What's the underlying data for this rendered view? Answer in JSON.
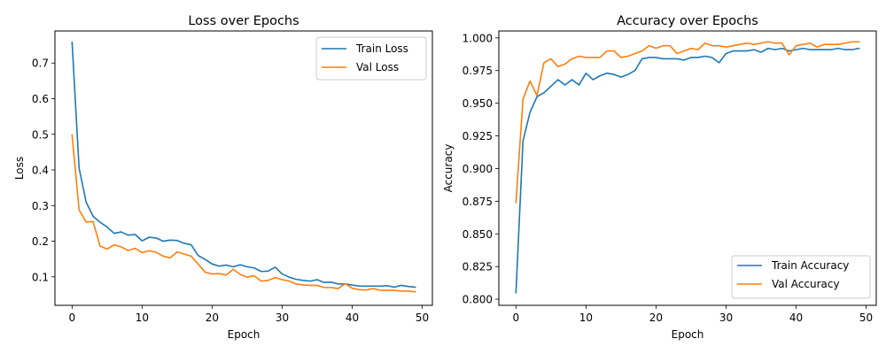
{
  "chart_data": [
    {
      "type": "line",
      "title": "Loss over Epochs",
      "xlabel": "Epoch",
      "ylabel": "Loss",
      "xlim": [
        -2.45,
        51.45
      ],
      "ylim": [
        0.02,
        0.79
      ],
      "xticks": [
        0,
        10,
        20,
        30,
        40,
        50
      ],
      "yticks": [
        0.1,
        0.2,
        0.3,
        0.4,
        0.5,
        0.6,
        0.7
      ],
      "ytick_decimals": 1,
      "grid": false,
      "legend_position": "upper right",
      "x": [
        0,
        1,
        2,
        3,
        4,
        5,
        6,
        7,
        8,
        9,
        10,
        11,
        12,
        13,
        14,
        15,
        16,
        17,
        18,
        19,
        20,
        21,
        22,
        23,
        24,
        25,
        26,
        27,
        28,
        29,
        30,
        31,
        32,
        33,
        34,
        35,
        36,
        37,
        38,
        39,
        40,
        41,
        42,
        43,
        44,
        45,
        46,
        47,
        48,
        49
      ],
      "series": [
        {
          "name": "Train Loss",
          "color": "#1f77b4",
          "values": [
            0.758,
            0.405,
            0.31,
            0.27,
            0.253,
            0.24,
            0.222,
            0.226,
            0.217,
            0.219,
            0.201,
            0.211,
            0.209,
            0.2,
            0.203,
            0.202,
            0.194,
            0.19,
            0.16,
            0.149,
            0.136,
            0.13,
            0.133,
            0.128,
            0.134,
            0.128,
            0.125,
            0.115,
            0.116,
            0.127,
            0.108,
            0.099,
            0.093,
            0.09,
            0.088,
            0.092,
            0.084,
            0.085,
            0.08,
            0.08,
            0.077,
            0.074,
            0.074,
            0.074,
            0.074,
            0.075,
            0.071,
            0.076,
            0.073,
            0.071
          ]
        },
        {
          "name": "Val Loss",
          "color": "#ff7f0e",
          "values": [
            0.498,
            0.288,
            0.254,
            0.255,
            0.186,
            0.178,
            0.19,
            0.184,
            0.174,
            0.18,
            0.168,
            0.173,
            0.169,
            0.158,
            0.153,
            0.17,
            0.164,
            0.158,
            0.136,
            0.113,
            0.108,
            0.109,
            0.105,
            0.121,
            0.107,
            0.099,
            0.103,
            0.088,
            0.09,
            0.098,
            0.092,
            0.088,
            0.08,
            0.077,
            0.076,
            0.076,
            0.07,
            0.07,
            0.067,
            0.081,
            0.068,
            0.064,
            0.063,
            0.067,
            0.062,
            0.062,
            0.062,
            0.06,
            0.06,
            0.058
          ]
        }
      ]
    },
    {
      "type": "line",
      "title": "Accuracy over Epochs",
      "xlabel": "Epoch",
      "ylabel": "Accuracy",
      "xlim": [
        -2.45,
        51.45
      ],
      "ylim": [
        0.7953,
        1.0053
      ],
      "xticks": [
        0,
        10,
        20,
        30,
        40,
        50
      ],
      "yticks": [
        0.8,
        0.825,
        0.85,
        0.875,
        0.9,
        0.925,
        0.95,
        0.975,
        1.0
      ],
      "ytick_decimals": 3,
      "grid": false,
      "legend_position": "lower right",
      "x": [
        0,
        1,
        2,
        3,
        4,
        5,
        6,
        7,
        8,
        9,
        10,
        11,
        12,
        13,
        14,
        15,
        16,
        17,
        18,
        19,
        20,
        21,
        22,
        23,
        24,
        25,
        26,
        27,
        28,
        29,
        30,
        31,
        32,
        33,
        34,
        35,
        36,
        37,
        38,
        39,
        40,
        41,
        42,
        43,
        44,
        45,
        46,
        47,
        48,
        49
      ],
      "series": [
        {
          "name": "Train Accuracy",
          "color": "#1f77b4",
          "values": [
            0.805,
            0.921,
            0.943,
            0.955,
            0.958,
            0.963,
            0.968,
            0.964,
            0.968,
            0.964,
            0.973,
            0.968,
            0.971,
            0.973,
            0.972,
            0.97,
            0.972,
            0.975,
            0.984,
            0.985,
            0.985,
            0.984,
            0.984,
            0.984,
            0.983,
            0.985,
            0.985,
            0.986,
            0.985,
            0.981,
            0.988,
            0.99,
            0.99,
            0.99,
            0.991,
            0.989,
            0.992,
            0.991,
            0.992,
            0.99,
            0.991,
            0.992,
            0.991,
            0.991,
            0.991,
            0.991,
            0.992,
            0.991,
            0.991,
            0.992
          ]
        },
        {
          "name": "Val Accuracy",
          "color": "#ff7f0e",
          "values": [
            0.874,
            0.953,
            0.967,
            0.956,
            0.981,
            0.984,
            0.978,
            0.98,
            0.984,
            0.986,
            0.985,
            0.985,
            0.985,
            0.99,
            0.99,
            0.985,
            0.986,
            0.988,
            0.99,
            0.994,
            0.992,
            0.994,
            0.994,
            0.988,
            0.99,
            0.992,
            0.991,
            0.996,
            0.994,
            0.994,
            0.993,
            0.994,
            0.995,
            0.996,
            0.995,
            0.996,
            0.997,
            0.996,
            0.996,
            0.987,
            0.994,
            0.995,
            0.996,
            0.993,
            0.995,
            0.995,
            0.995,
            0.996,
            0.997,
            0.997
          ]
        }
      ]
    }
  ]
}
